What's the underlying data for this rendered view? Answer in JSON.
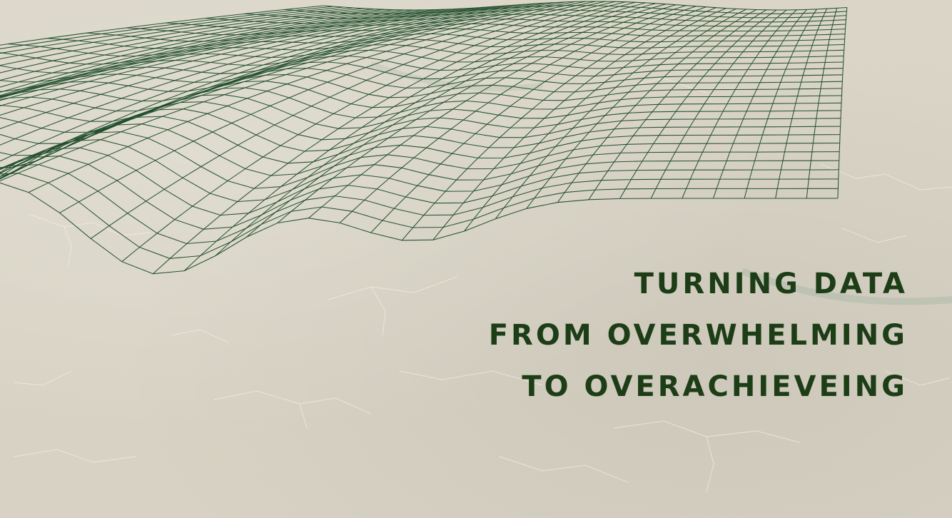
{
  "headline": {
    "line_1": "TURNING DATA",
    "line_2": "FROM OVERWHELMING",
    "line_3": "TO OVERACHIEVEING"
  },
  "colors": {
    "background": "#d9d4c6",
    "mesh": "#1f4d2a",
    "text": "#1d3d17"
  },
  "graphic": {
    "name": "wireframe-terrain-mesh"
  }
}
